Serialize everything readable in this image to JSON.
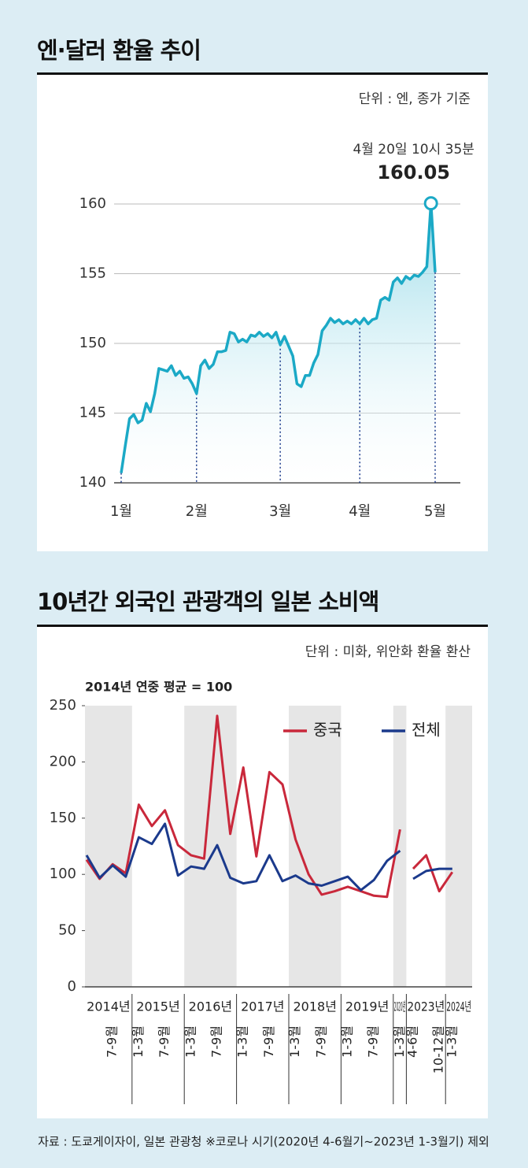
{
  "chart_data": [
    {
      "type": "line",
      "title": "엔·달러 환율 추이",
      "subtitle": "단위 : 엔, 종가 기준",
      "color": "#1ba9c6",
      "area": true,
      "values": [
        140.7,
        142.7,
        144.6,
        144.9,
        144.3,
        144.5,
        145.7,
        145.1,
        146.4,
        148.2,
        148.1,
        148.0,
        148.4,
        147.7,
        148.0,
        147.5,
        147.6,
        147.1,
        146.4,
        148.4,
        148.8,
        148.2,
        148.5,
        149.4,
        149.4,
        149.5,
        150.8,
        150.7,
        150.1,
        150.3,
        150.1,
        150.6,
        150.5,
        150.8,
        150.5,
        150.7,
        150.4,
        150.8,
        149.9,
        150.5,
        149.8,
        149.1,
        147.1,
        146.9,
        147.7,
        147.7,
        148.6,
        149.2,
        150.9,
        151.3,
        151.8,
        151.5,
        151.7,
        151.4,
        151.6,
        151.4,
        151.7,
        151.4,
        151.8,
        151.4,
        151.7,
        151.8,
        153.1,
        153.3,
        153.1,
        154.4,
        154.7,
        154.3,
        154.8,
        154.6,
        154.9,
        154.8,
        155.1,
        155.5,
        160.05,
        155.1
      ],
      "xlim": [
        0,
        75
      ],
      "xticks": [
        {
          "value": 0,
          "label": "1월"
        },
        {
          "value": 18,
          "label": "2월"
        },
        {
          "value": 38,
          "label": "3월"
        },
        {
          "value": 57,
          "label": "4월"
        },
        {
          "value": 75,
          "label": "5월"
        }
      ],
      "ylim": [
        140,
        160
      ],
      "yticks": [
        140,
        145,
        150,
        155,
        160
      ],
      "grid": true,
      "annotation": {
        "x": 74,
        "text": "4월 20일 10시 35분",
        "value_label": "160.05"
      }
    },
    {
      "type": "line",
      "title": "10년간 외국인 관광객의 일본 소비액",
      "subtitle": "단위 : 미화, 위안화 환율 환산",
      "note": "2014년 연중 평균 = 100",
      "categories": [
        null,
        null,
        "7-9월",
        null,
        "1-3월",
        null,
        "7-9월",
        null,
        "1-3월",
        null,
        "7-9월",
        null,
        "1-3월",
        null,
        "7-9월",
        null,
        "1-3월",
        null,
        "7-9월",
        null,
        "1-3월",
        null,
        "7-9월",
        null,
        "1-3월",
        null,
        "4-6월",
        null,
        "10-12월",
        "1-3월"
      ],
      "category_years": [
        "2014년",
        null,
        null,
        null,
        "2015년",
        null,
        null,
        null,
        "2016년",
        null,
        null,
        null,
        "2017년",
        null,
        null,
        null,
        "2018년",
        null,
        null,
        null,
        "2019년",
        null,
        null,
        null,
        "2020년",
        null,
        "2023년",
        null,
        null,
        "2024년"
      ],
      "series": [
        {
          "name": "중국",
          "color": "#c9283b",
          "values": [
            113,
            96,
            109,
            101,
            162,
            143,
            157,
            126,
            117,
            114,
            241,
            136,
            195,
            116,
            191,
            180,
            131,
            100,
            82,
            85,
            89,
            85,
            81,
            80,
            140,
            null,
            105,
            117,
            85,
            102
          ]
        },
        {
          "name": "전체",
          "color": "#1b3a8c",
          "values": [
            117,
            97,
            108,
            98,
            133,
            127,
            145,
            99,
            107,
            105,
            126,
            97,
            92,
            94,
            117,
            94,
            99,
            92,
            90,
            94,
            98,
            86,
            95,
            112,
            121,
            null,
            96,
            103,
            105,
            105
          ]
        }
      ],
      "ylim": [
        0,
        250
      ],
      "yticks": [
        0,
        50,
        100,
        150,
        200,
        250
      ],
      "legend": "upper right",
      "bands": true
    }
  ],
  "source": "자료 : 도쿄게이자이, 일본 관광청 ※코로나 시기(2020년 4-6월기~2023년 1-3월기) 제외"
}
